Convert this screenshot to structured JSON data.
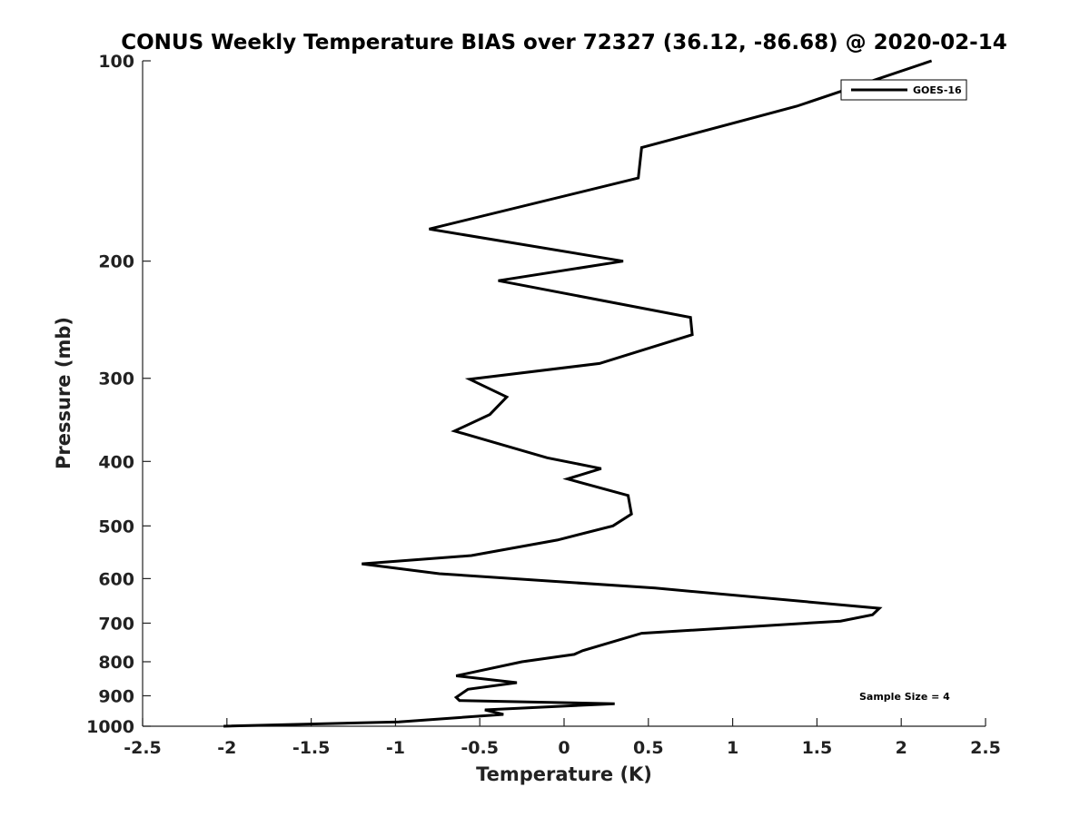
{
  "chart_data": {
    "type": "line",
    "title": "CONUS Weekly Temperature BIAS over 72327 (36.12, -86.68) @ 2020-02-14",
    "xlabel": "Temperature (K)",
    "ylabel": "Pressure (mb)",
    "xlim": [
      -2.5,
      2.5
    ],
    "ylim": [
      1000,
      100
    ],
    "yscale": "log",
    "y_reversed": true,
    "grid": false,
    "legend_position": "top-right",
    "xticks": [
      -2.5,
      -2,
      -1.5,
      -1,
      -0.5,
      0,
      0.5,
      1,
      1.5,
      2,
      2.5
    ],
    "xtick_labels": [
      "-2.5",
      "-2",
      "-1.5",
      "-1",
      "-0.5",
      "0",
      "0.5",
      "1",
      "1.5",
      "2",
      "2.5"
    ],
    "yticks": [
      100,
      200,
      300,
      400,
      500,
      600,
      700,
      800,
      900,
      1000
    ],
    "ytick_labels": [
      "100",
      "200",
      "300",
      "400",
      "500",
      "600",
      "700",
      "800",
      "900",
      "1000"
    ],
    "series": [
      {
        "name": "GOES-16",
        "color": "#000000",
        "points": [
          [
            2.18,
            100
          ],
          [
            1.38,
            117
          ],
          [
            0.46,
            135
          ],
          [
            0.44,
            150
          ],
          [
            -0.8,
            179
          ],
          [
            0.35,
            200
          ],
          [
            -0.39,
            214
          ],
          [
            0.75,
            243
          ],
          [
            0.76,
            258
          ],
          [
            0.21,
            285
          ],
          [
            -0.56,
            301
          ],
          [
            -0.34,
            320
          ],
          [
            -0.44,
            340
          ],
          [
            -0.65,
            360
          ],
          [
            -0.1,
            395
          ],
          [
            0.22,
            410
          ],
          [
            0.02,
            425
          ],
          [
            0.38,
            450
          ],
          [
            0.4,
            480
          ],
          [
            0.29,
            500
          ],
          [
            -0.04,
            525
          ],
          [
            -0.55,
            554
          ],
          [
            -1.2,
            570
          ],
          [
            -0.74,
            590
          ],
          [
            0.54,
            620
          ],
          [
            1.87,
            665
          ],
          [
            1.83,
            680
          ],
          [
            1.64,
            695
          ],
          [
            0.46,
            725
          ],
          [
            0.11,
            770
          ],
          [
            0.06,
            780
          ],
          [
            -0.25,
            800
          ],
          [
            -0.64,
            840
          ],
          [
            -0.28,
            860
          ],
          [
            -0.57,
            880
          ],
          [
            -0.64,
            905
          ],
          [
            -0.62,
            915
          ],
          [
            0.3,
            925
          ],
          [
            -0.47,
            945
          ],
          [
            -0.36,
            960
          ],
          [
            -0.98,
            985
          ],
          [
            -2.02,
            1000
          ]
        ]
      }
    ],
    "legend": [
      "GOES-16"
    ],
    "annotation": "Sample Size = 4"
  }
}
